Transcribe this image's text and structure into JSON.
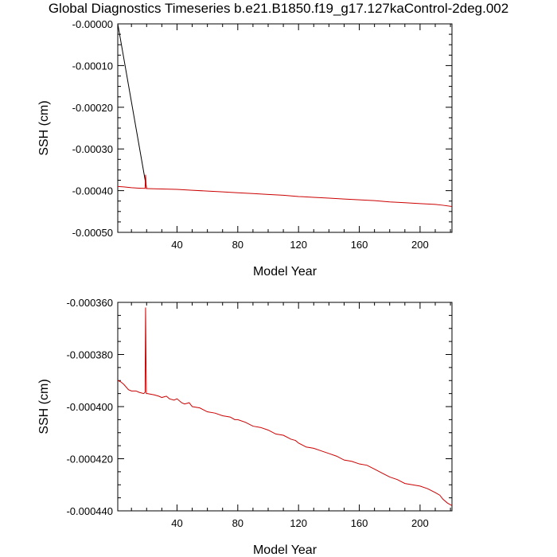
{
  "figure_title": "Global Diagnostics Timeseries b.e21.B1850.f19_g17.127kaControl-2deg.002",
  "colors": {
    "series_black": "#000000",
    "series_red": "#cc0000",
    "axes": "#000000"
  },
  "chart_data": [
    {
      "type": "line",
      "title": "",
      "xlabel": "Model Year",
      "ylabel": "SSH (cm)",
      "xlim": [
        1,
        221
      ],
      "ylim": [
        -0.0005,
        0.0
      ],
      "x_ticks": [
        40,
        80,
        120,
        160,
        200
      ],
      "y_ticks": [
        -0.0005,
        -0.0004,
        -0.0003,
        -0.0002,
        -0.0001,
        0.0
      ],
      "y_tick_labels": [
        "-0.00050",
        "-0.00040",
        "-0.00030",
        "-0.00020",
        "-0.00010",
        "-0.00000"
      ],
      "grid": false,
      "legend": "none",
      "series": [
        {
          "color": "#000000",
          "x": [
            1,
            20,
            20.5
          ],
          "y": [
            0.0,
            -0.000395,
            -0.000395
          ]
        },
        {
          "color": "#cc0000",
          "x": [
            1,
            5,
            10,
            15,
            19,
            19.3,
            19.8,
            20.5,
            25,
            30,
            40,
            50,
            60,
            70,
            80,
            90,
            100,
            110,
            120,
            130,
            140,
            150,
            160,
            170,
            180,
            190,
            200,
            210,
            215,
            221
          ],
          "y": [
            -0.00039,
            -0.000391,
            -0.000393,
            -0.000394,
            -0.0003945,
            -0.000362,
            -0.000395,
            -0.000395,
            -0.0003955,
            -0.000396,
            -0.000397,
            -0.000399,
            -0.000401,
            -0.000403,
            -0.000405,
            -0.000407,
            -0.000409,
            -0.000411,
            -0.000414,
            -0.000416,
            -0.000418,
            -0.00042,
            -0.000422,
            -0.000424,
            -0.000427,
            -0.000429,
            -0.000431,
            -0.000433,
            -0.000435,
            -0.000438
          ]
        }
      ]
    },
    {
      "type": "line",
      "title": "",
      "xlabel": "Model Year",
      "ylabel": "SSH (cm)",
      "xlim": [
        1,
        221
      ],
      "ylim": [
        -0.00044,
        -0.00036
      ],
      "x_ticks": [
        40,
        80,
        120,
        160,
        200
      ],
      "y_ticks": [
        -0.00044,
        -0.00042,
        -0.0004,
        -0.00038,
        -0.00036
      ],
      "y_tick_labels": [
        "-0.000440",
        "-0.000420",
        "-0.000400",
        "-0.000380",
        "-0.000360"
      ],
      "grid": false,
      "legend": "none",
      "series": [
        {
          "color": "#cc0000",
          "x": [
            1,
            3,
            5,
            8,
            10,
            13,
            15,
            18,
            19,
            19.3,
            19.8,
            20.5,
            25,
            28,
            30,
            33,
            35,
            38,
            40,
            43,
            45,
            48,
            50,
            55,
            60,
            65,
            70,
            75,
            78,
            80,
            85,
            90,
            95,
            100,
            105,
            110,
            115,
            118,
            120,
            125,
            130,
            135,
            140,
            145,
            150,
            155,
            160,
            165,
            170,
            175,
            180,
            185,
            190,
            195,
            200,
            205,
            210,
            213,
            215,
            218,
            221
          ],
          "y": [
            -0.00039,
            -0.0003905,
            -0.0003915,
            -0.0003935,
            -0.000394,
            -0.000394,
            -0.0003945,
            -0.000395,
            -0.0003945,
            -0.000362,
            -0.000395,
            -0.000395,
            -0.0003955,
            -0.000396,
            -0.0003965,
            -0.000396,
            -0.000397,
            -0.0003975,
            -0.000397,
            -0.0003985,
            -0.000399,
            -0.0003985,
            -0.0004,
            -0.0004005,
            -0.000402,
            -0.0004025,
            -0.0004035,
            -0.000404,
            -0.000405,
            -0.000405,
            -0.000406,
            -0.0004075,
            -0.000408,
            -0.000409,
            -0.0004105,
            -0.000411,
            -0.0004125,
            -0.000413,
            -0.000414,
            -0.0004155,
            -0.000416,
            -0.000417,
            -0.000418,
            -0.000419,
            -0.0004205,
            -0.000421,
            -0.000422,
            -0.0004225,
            -0.000424,
            -0.0004255,
            -0.000427,
            -0.000428,
            -0.0004295,
            -0.00043,
            -0.0004305,
            -0.0004315,
            -0.000433,
            -0.000434,
            -0.0004355,
            -0.000437,
            -0.000438
          ]
        }
      ]
    }
  ]
}
